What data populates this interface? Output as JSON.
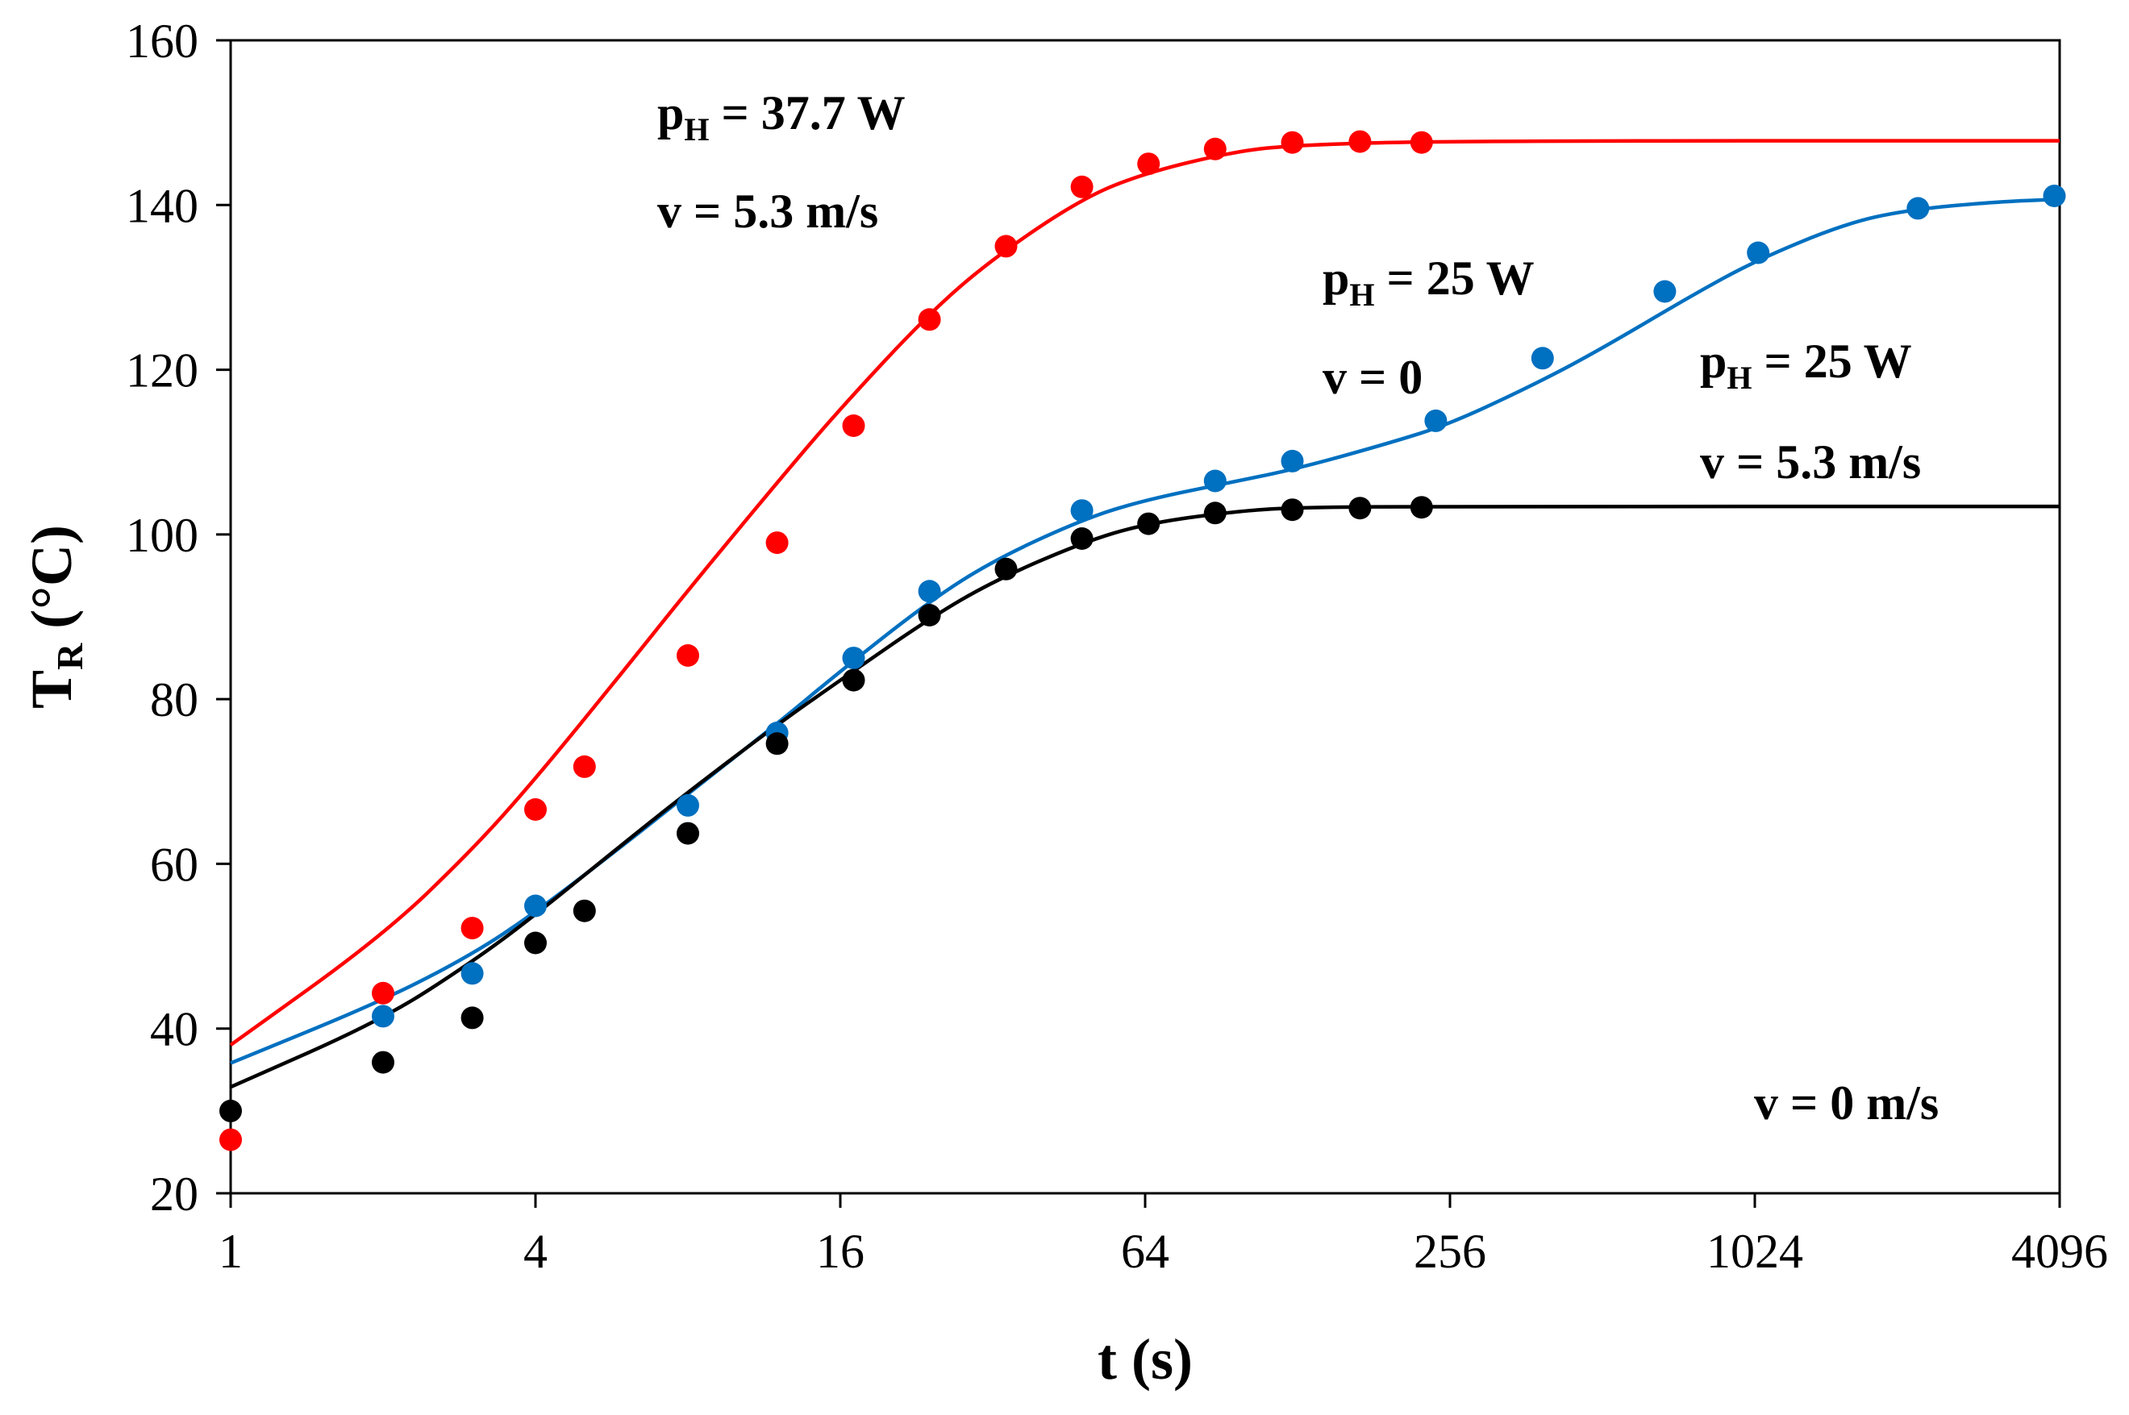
{
  "chart_data": {
    "type": "scatter",
    "xlabel": "t (s)",
    "ylabel_main": "T",
    "ylabel_sub": "R",
    "ylabel_unit": " (°C)",
    "x_scale": "log2",
    "xlim": [
      1,
      4096
    ],
    "ylim": [
      20,
      160
    ],
    "x_ticks": [
      1,
      4,
      16,
      64,
      256,
      1024,
      4096
    ],
    "x_tick_labels": [
      "1",
      "4",
      "16",
      "64",
      "256",
      "1024",
      "4096"
    ],
    "y_ticks": [
      20,
      40,
      60,
      80,
      100,
      120,
      140,
      160
    ],
    "y_tick_labels": [
      "20",
      "40",
      "60",
      "80",
      "100",
      "120",
      "140",
      "160"
    ],
    "grid": false,
    "series": [
      {
        "name": "pH = 37.7 W, v = 5.3 m/s",
        "color": "#ff0000",
        "points": [
          [
            1,
            26.5
          ],
          [
            2,
            44.3
          ],
          [
            3,
            52.2
          ],
          [
            4,
            66.6
          ],
          [
            5,
            71.8
          ],
          [
            8,
            85.3
          ],
          [
            12,
            99.0
          ],
          [
            17,
            113.2
          ],
          [
            24,
            126.1
          ],
          [
            34,
            135.0
          ],
          [
            48,
            142.2
          ],
          [
            65,
            145.0
          ],
          [
            88,
            146.8
          ],
          [
            125,
            147.6
          ],
          [
            170,
            147.7
          ],
          [
            225,
            147.6
          ]
        ],
        "fit": [
          [
            1,
            38.0
          ],
          [
            2,
            51.3
          ],
          [
            3,
            61.7
          ],
          [
            4,
            70.3
          ],
          [
            6,
            83.6
          ],
          [
            8,
            93.2
          ],
          [
            12,
            106.3
          ],
          [
            16,
            115.3
          ],
          [
            24,
            126.9
          ],
          [
            32,
            133.5
          ],
          [
            48,
            140.8
          ],
          [
            64,
            143.9
          ],
          [
            96,
            146.5
          ],
          [
            128,
            147.3
          ],
          [
            256,
            147.8
          ],
          [
            4096,
            147.8
          ]
        ]
      },
      {
        "name": "pH = 25 W, v = 0",
        "color": "#0070c0",
        "points": [
          [
            2,
            41.5
          ],
          [
            3,
            46.7
          ],
          [
            4,
            54.9
          ],
          [
            8,
            67.1
          ],
          [
            12,
            75.9
          ],
          [
            17,
            85.0
          ],
          [
            24,
            93.1
          ],
          [
            48,
            102.9
          ],
          [
            88,
            106.5
          ],
          [
            125,
            108.9
          ],
          [
            240,
            113.8
          ],
          [
            390,
            121.4
          ],
          [
            680,
            129.5
          ],
          [
            1040,
            134.2
          ],
          [
            2150,
            139.6
          ],
          [
            4000,
            141.1
          ]
        ],
        "fit": [
          [
            1,
            35.8
          ],
          [
            2,
            43.4
          ],
          [
            3,
            49.0
          ],
          [
            4,
            54.1
          ],
          [
            6,
            62.4
          ],
          [
            8,
            68.5
          ],
          [
            12,
            77.0
          ],
          [
            16,
            83.4
          ],
          [
            24,
            91.9
          ],
          [
            32,
            96.8
          ],
          [
            48,
            101.8
          ],
          [
            64,
            104.2
          ],
          [
            96,
            106.4
          ],
          [
            128,
            108.0
          ],
          [
            192,
            111.0
          ],
          [
            256,
            113.4
          ],
          [
            384,
            118.5
          ],
          [
            512,
            122.6
          ],
          [
            768,
            129.0
          ],
          [
            1024,
            133.2
          ],
          [
            1536,
            137.7
          ],
          [
            2048,
            139.4
          ],
          [
            3072,
            140.4
          ],
          [
            4096,
            140.7
          ]
        ]
      },
      {
        "name": "pH = 25 W, v = 5.3 m/s",
        "color": "#000000",
        "points": [
          [
            1,
            30.0
          ],
          [
            2,
            35.9
          ],
          [
            3,
            41.3
          ],
          [
            4,
            50.4
          ],
          [
            5,
            54.3
          ],
          [
            8,
            63.7
          ],
          [
            12,
            74.6
          ],
          [
            17,
            82.3
          ],
          [
            24,
            90.2
          ],
          [
            34,
            95.8
          ],
          [
            48,
            99.5
          ],
          [
            65,
            101.3
          ],
          [
            88,
            102.6
          ],
          [
            125,
            103.0
          ],
          [
            170,
            103.2
          ],
          [
            225,
            103.3
          ]
        ],
        "fit": [
          [
            1,
            32.9
          ],
          [
            2,
            41.1
          ],
          [
            3,
            48.1
          ],
          [
            4,
            53.8
          ],
          [
            6,
            62.6
          ],
          [
            8,
            68.7
          ],
          [
            12,
            76.9
          ],
          [
            16,
            82.3
          ],
          [
            24,
            89.8
          ],
          [
            32,
            94.3
          ],
          [
            48,
            99.0
          ],
          [
            64,
            101.3
          ],
          [
            96,
            102.8
          ],
          [
            128,
            103.3
          ],
          [
            256,
            103.4
          ],
          [
            4096,
            103.4
          ]
        ]
      }
    ],
    "annotations": [
      {
        "id": "a1",
        "main": "p",
        "sub": "H",
        "rest": " = 37.7 W"
      },
      {
        "id": "a2",
        "main": "v = 5.3 m/s"
      },
      {
        "id": "a3",
        "main": "p",
        "sub": "H",
        "rest": " = 25 W"
      },
      {
        "id": "a4",
        "main": "v = 0"
      },
      {
        "id": "a5",
        "main": "p",
        "sub": "H",
        "rest": " = 25 W"
      },
      {
        "id": "a6",
        "main": "v = 5.3 m/s"
      },
      {
        "id": "a7",
        "main": "v = 0 m/s"
      }
    ]
  }
}
